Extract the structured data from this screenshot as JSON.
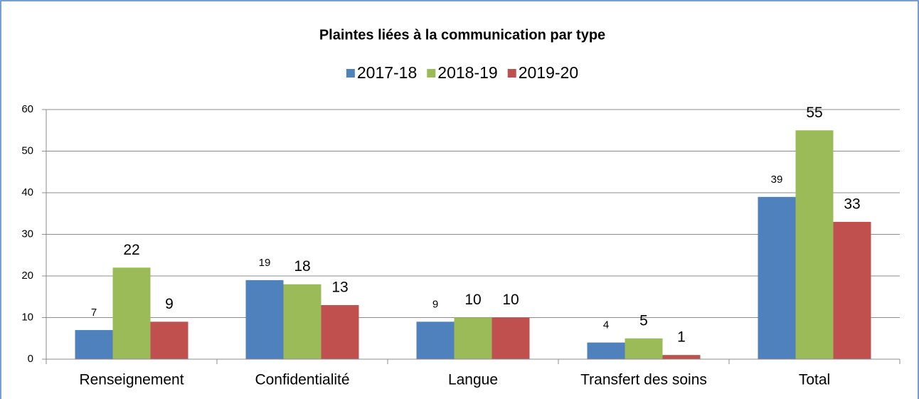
{
  "chart_data": {
    "type": "bar",
    "title": "Plaintes liées à la communication par type",
    "categories": [
      "Renseignement",
      "Confidentialité",
      "Langue",
      "Transfert des soins",
      "Total"
    ],
    "series": [
      {
        "name": "2017-18",
        "color": "#4f81bd",
        "values": [
          7,
          19,
          9,
          4,
          39
        ]
      },
      {
        "name": "2018-19",
        "color": "#9bbb59",
        "values": [
          22,
          18,
          10,
          5,
          55
        ]
      },
      {
        "name": "2019-20",
        "color": "#c0504d",
        "values": [
          9,
          13,
          10,
          1,
          33
        ]
      }
    ],
    "ylim": [
      0,
      60
    ],
    "yticks": [
      0,
      10,
      20,
      30,
      40,
      50,
      60
    ],
    "grid": true,
    "legend": "top"
  }
}
